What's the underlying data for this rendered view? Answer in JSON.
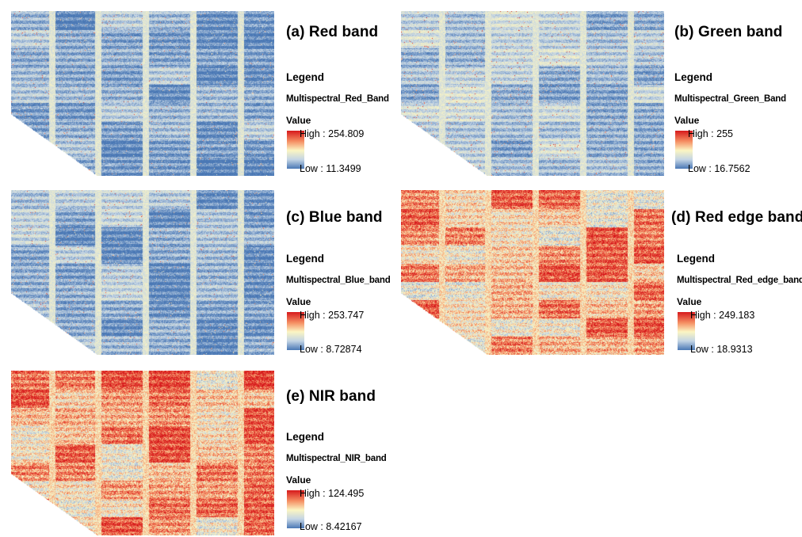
{
  "panels": [
    {
      "id": "a",
      "title": "(a) Red band",
      "legend_heading": "Legend",
      "layer_name": "Multispectral_Red_Band",
      "value_label": "Value",
      "high_label": "High : 254.809",
      "low_label": "Low : 11.3499",
      "palette": "cool",
      "intensity": 0.14
    },
    {
      "id": "b",
      "title": "(b) Green band",
      "legend_heading": "Legend",
      "layer_name": "Multispectral_Green_Band",
      "value_label": "Value",
      "high_label": "High : 255",
      "low_label": "Low : 16.7562",
      "palette": "cool",
      "intensity": 0.22
    },
    {
      "id": "c",
      "title": "(c) Blue band",
      "legend_heading": "Legend",
      "layer_name": "Multispectral_Blue_band",
      "value_label": "Value",
      "high_label": "High : 253.747",
      "low_label": "Low : 8.72874",
      "palette": "cool",
      "intensity": 0.16
    },
    {
      "id": "d",
      "title": "(d) Red edge band",
      "legend_heading": "Legend",
      "layer_name": "Multispectral_Red_edge_band",
      "value_label": "Value",
      "high_label": "High : 249.183",
      "low_label": "Low : 18.9313",
      "palette": "warm",
      "intensity": 0.62
    },
    {
      "id": "e",
      "title": "(e) NIR band",
      "legend_heading": "Legend",
      "layer_name": "Multispectral_NIR_band",
      "value_label": "Value",
      "high_label": "High : 124.495",
      "low_label": "Low : 8.42167",
      "palette": "warm",
      "intensity": 0.66
    }
  ],
  "colors": {
    "high": "#d7191c",
    "mid": "#fbf5c3",
    "low": "#4a78b5"
  }
}
